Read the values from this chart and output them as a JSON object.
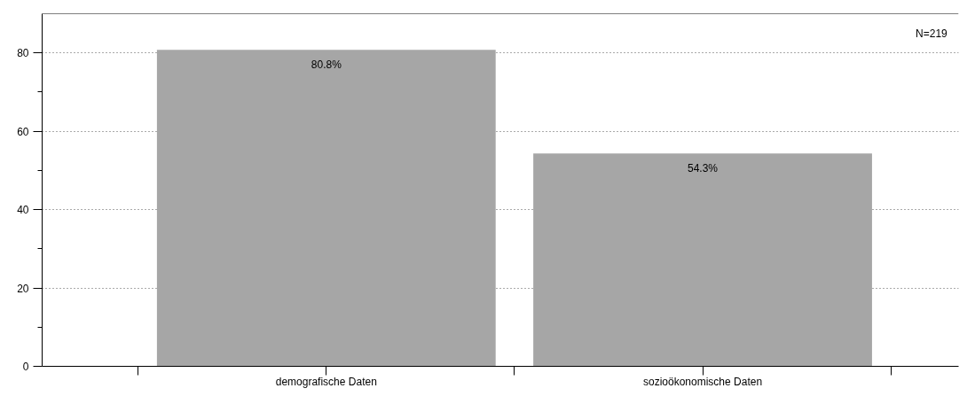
{
  "chart_data": {
    "type": "bar",
    "categories": [
      "demografische Daten",
      "sozioökonomische Daten"
    ],
    "values": [
      80.8,
      54.3
    ],
    "value_labels": [
      "80.8%",
      "54.3%"
    ],
    "color": "#a6a6a6",
    "ylim": [
      0,
      90
    ],
    "yticks": [
      0,
      20,
      40,
      60,
      80
    ],
    "grid": "y",
    "annotations": [
      "N=219"
    ]
  }
}
